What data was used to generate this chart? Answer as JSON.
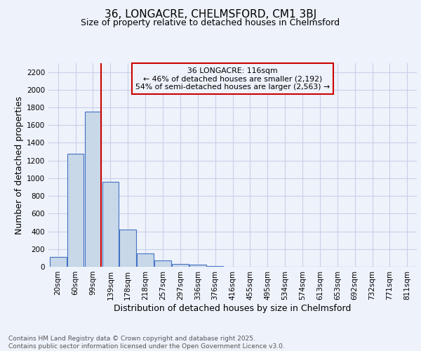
{
  "title_line1": "36, LONGACRE, CHELMSFORD, CM1 3BJ",
  "title_line2": "Size of property relative to detached houses in Chelmsford",
  "xlabel": "Distribution of detached houses by size in Chelmsford",
  "ylabel": "Number of detached properties",
  "footnote_line1": "Contains HM Land Registry data © Crown copyright and database right 2025.",
  "footnote_line2": "Contains public sector information licensed under the Open Government Licence v3.0.",
  "bin_labels": [
    "20sqm",
    "60sqm",
    "99sqm",
    "139sqm",
    "178sqm",
    "218sqm",
    "257sqm",
    "297sqm",
    "336sqm",
    "376sqm",
    "416sqm",
    "455sqm",
    "495sqm",
    "534sqm",
    "574sqm",
    "613sqm",
    "653sqm",
    "692sqm",
    "732sqm",
    "771sqm",
    "811sqm"
  ],
  "bin_values": [
    110,
    1280,
    1750,
    960,
    420,
    150,
    75,
    35,
    20,
    10,
    0,
    0,
    0,
    0,
    0,
    0,
    0,
    0,
    0,
    0,
    0
  ],
  "bar_color": "#c8d8e8",
  "bar_edge_color": "#4472c4",
  "annotation_text_line1": "36 LONGACRE: 116sqm",
  "annotation_text_line2": "← 46% of detached houses are smaller (2,192)",
  "annotation_text_line3": "54% of semi-detached houses are larger (2,563) →",
  "annotation_box_color": "#cc0000",
  "ylim": [
    0,
    2300
  ],
  "yticks": [
    0,
    200,
    400,
    600,
    800,
    1000,
    1200,
    1400,
    1600,
    1800,
    2000,
    2200
  ],
  "bg_color": "#eef2fb",
  "grid_color": "#c8d0e8",
  "title_fontsize": 11,
  "subtitle_fontsize": 9,
  "axis_label_fontsize": 9,
  "tick_fontsize": 7.5,
  "footnote_fontsize": 6.5
}
